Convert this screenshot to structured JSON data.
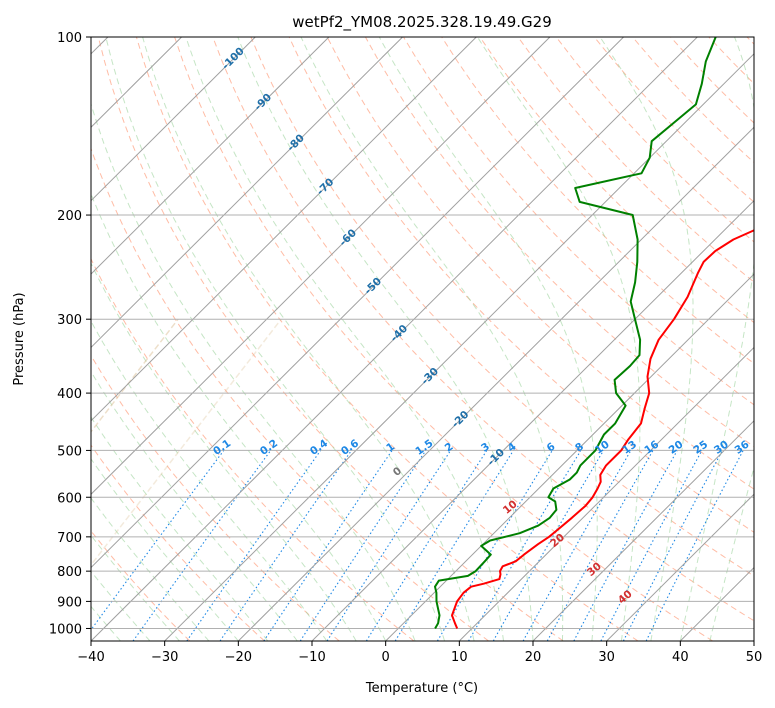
{
  "chart_data": {
    "type": "line",
    "title": "wetPf2_YM08.2025.328.19.49.G29",
    "xlabel": "Temperature (°C)",
    "ylabel": "Pressure (hPa)",
    "xlim": [
      -40,
      50
    ],
    "ylim": [
      1050,
      100
    ],
    "x_ticks": [
      -40,
      -30,
      -20,
      -10,
      0,
      10,
      20,
      30,
      40,
      50
    ],
    "y_ticks": [
      100,
      200,
      300,
      400,
      500,
      600,
      700,
      800,
      900,
      1000
    ],
    "skew": 35,
    "series": [
      {
        "name": "Temperature",
        "color": "#ff0000",
        "points": [
          [
            8.0,
            1000
          ],
          [
            7.0,
            980
          ],
          [
            5.5,
            950
          ],
          [
            4.3,
            900
          ],
          [
            4.0,
            870
          ],
          [
            4.2,
            850
          ],
          [
            5.5,
            840
          ],
          [
            7.0,
            825
          ],
          [
            6.5,
            810
          ],
          [
            6.0,
            800
          ],
          [
            5.7,
            785
          ],
          [
            6.8,
            770
          ],
          [
            7.0,
            750
          ],
          [
            7.5,
            720
          ],
          [
            8.0,
            700
          ],
          [
            8.2,
            680
          ],
          [
            8.5,
            650
          ],
          [
            8.7,
            620
          ],
          [
            8.5,
            600
          ],
          [
            8.0,
            580
          ],
          [
            7.5,
            565
          ],
          [
            6.5,
            550
          ],
          [
            6.0,
            530
          ],
          [
            6.0,
            510
          ],
          [
            6.0,
            500
          ],
          [
            5.5,
            480
          ],
          [
            5.0,
            450
          ],
          [
            3.5,
            425
          ],
          [
            2.0,
            400
          ],
          [
            -0.5,
            375
          ],
          [
            -2.5,
            350
          ],
          [
            -4.0,
            325
          ],
          [
            -4.7,
            300
          ],
          [
            -5.9,
            275
          ],
          [
            -7.8,
            250
          ],
          [
            -8.5,
            240
          ],
          [
            -8.4,
            230
          ],
          [
            -7.5,
            220
          ],
          [
            -5.5,
            210
          ],
          [
            -2.5,
            200
          ],
          [
            0.0,
            190
          ],
          [
            2.0,
            180
          ],
          [
            3.5,
            170
          ],
          [
            4.0,
            160
          ],
          [
            4.5,
            150
          ],
          [
            6.5,
            140
          ],
          [
            8.5,
            130
          ],
          [
            11.0,
            120
          ],
          [
            13.0,
            110
          ],
          [
            14.0,
            100
          ]
        ]
      },
      {
        "name": "Dewpoint",
        "color": "#008000",
        "points": [
          [
            5.0,
            1000
          ],
          [
            4.7,
            980
          ],
          [
            3.8,
            950
          ],
          [
            1.5,
            900
          ],
          [
            0.3,
            870
          ],
          [
            -0.7,
            850
          ],
          [
            -1.0,
            830
          ],
          [
            2.3,
            815
          ],
          [
            2.7,
            800
          ],
          [
            2.6,
            770
          ],
          [
            2.5,
            750
          ],
          [
            0.0,
            725
          ],
          [
            0.5,
            710
          ],
          [
            3.5,
            690
          ],
          [
            5.0,
            670
          ],
          [
            5.5,
            650
          ],
          [
            5.3,
            630
          ],
          [
            4.0,
            610
          ],
          [
            2.5,
            600
          ],
          [
            2.0,
            580
          ],
          [
            3.0,
            560
          ],
          [
            3.0,
            545
          ],
          [
            2.5,
            530
          ],
          [
            2.5,
            500
          ],
          [
            1.5,
            470
          ],
          [
            1.5,
            450
          ],
          [
            0.5,
            420
          ],
          [
            -2.5,
            400
          ],
          [
            -4.5,
            380
          ],
          [
            -4.3,
            360
          ],
          [
            -4.5,
            345
          ],
          [
            -6.5,
            325
          ],
          [
            -10.0,
            300
          ],
          [
            -13.0,
            280
          ],
          [
            -15.0,
            260
          ],
          [
            -17.5,
            240
          ],
          [
            -20.5,
            220
          ],
          [
            -24.5,
            200
          ],
          [
            -33.5,
            190
          ],
          [
            -36.0,
            180
          ],
          [
            -29.0,
            170
          ],
          [
            -30.0,
            160
          ],
          [
            -32.0,
            150
          ],
          [
            -31.5,
            140
          ],
          [
            -31.0,
            130
          ],
          [
            -33.0,
            120
          ],
          [
            -35.5,
            110
          ],
          [
            -37.5,
            100
          ]
        ]
      }
    ],
    "mixing_ratio_labels": [
      "0.1",
      "0.2",
      "0.4",
      "0.6",
      "1",
      "1.5",
      "2",
      "3",
      "4",
      "6",
      "8",
      "10",
      "13",
      "16",
      "20",
      "25",
      "30",
      "36"
    ],
    "isotherm_labels": [
      "-100",
      "-90",
      "-80",
      "-70",
      "-60",
      "-50",
      "-40",
      "-30",
      "-20",
      "-10"
    ],
    "moist_adiabat_labels": [
      "0",
      "10",
      "20",
      "30",
      "40"
    ]
  }
}
